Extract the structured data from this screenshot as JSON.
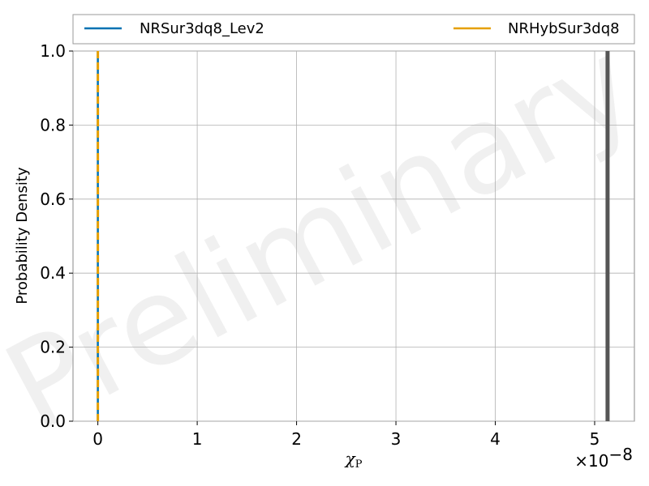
{
  "chart_data": {
    "type": "line",
    "xlabel": "χ",
    "xlabel_subscript": "P",
    "ylabel": "Probability Density",
    "xlim": [
      -0.25,
      5.4
    ],
    "ylim": [
      0,
      1
    ],
    "x_offset_label": "×10",
    "x_offset_exponent": "−8",
    "x_ticks": [
      0,
      1,
      2,
      3,
      4,
      5
    ],
    "x_tick_labels": [
      "0",
      "1",
      "2",
      "3",
      "4",
      "5"
    ],
    "y_ticks": [
      0,
      0.2,
      0.4,
      0.6,
      0.8,
      1.0
    ],
    "y_tick_labels": [
      "0.0",
      "0.2",
      "0.4",
      "0.6",
      "0.8",
      "1.0"
    ],
    "grid": true,
    "legend_position": "top",
    "watermark": "Preliminary",
    "series": [
      {
        "name": "NRSur3dq8_Lev2",
        "color": "#0072b2",
        "style": "solid",
        "x": [
          0,
          0
        ],
        "y": [
          0,
          1
        ]
      },
      {
        "name": "NRHybSur3dq8",
        "color": "#e69f00",
        "style": "dashed",
        "x": [
          0,
          0
        ],
        "y": [
          0,
          1
        ]
      }
    ],
    "reference_line": {
      "color": "#555555",
      "x": 5.13
    }
  }
}
